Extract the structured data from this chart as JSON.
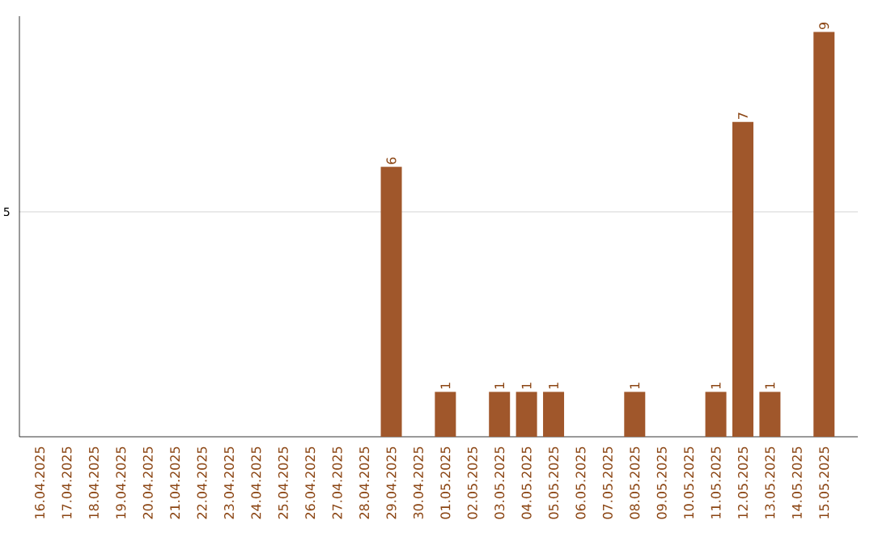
{
  "chart_data": {
    "type": "bar",
    "categories": [
      "16.04.2025",
      "17.04.2025",
      "18.04.2025",
      "19.04.2025",
      "20.04.2025",
      "21.04.2025",
      "22.04.2025",
      "23.04.2025",
      "24.04.2025",
      "25.04.2025",
      "26.04.2025",
      "27.04.2025",
      "28.04.2025",
      "29.04.2025",
      "30.04.2025",
      "01.05.2025",
      "02.05.2025",
      "03.05.2025",
      "04.05.2025",
      "05.05.2025",
      "06.05.2025",
      "07.05.2025",
      "08.05.2025",
      "09.05.2025",
      "10.05.2025",
      "11.05.2025",
      "12.05.2025",
      "13.05.2025",
      "14.05.2025",
      "15.05.2025"
    ],
    "values": [
      null,
      null,
      null,
      null,
      null,
      null,
      null,
      null,
      null,
      null,
      null,
      null,
      null,
      6,
      null,
      1,
      null,
      1,
      1,
      1,
      null,
      null,
      1,
      null,
      null,
      1,
      7,
      1,
      null,
      9
    ],
    "data_labels": true,
    "color": "#a0572b",
    "ylim": [
      0,
      9.35
    ],
    "yticks": [
      5
    ],
    "grid": "y"
  }
}
